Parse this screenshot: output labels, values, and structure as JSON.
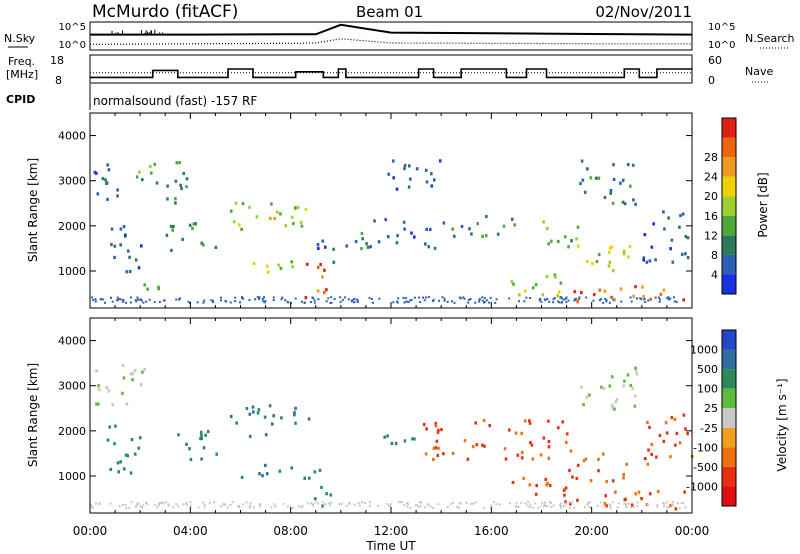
{
  "header": {
    "station": "McMurdo (fitACF)",
    "beam": "Beam 01",
    "date": "02/Nov/2011"
  },
  "noise_panel": {
    "left_label": "N.Sky",
    "left_ticks": [
      "10^5",
      "10^0"
    ],
    "right_label": "N.Search",
    "right_ticks": [
      "10^5",
      "10^0"
    ]
  },
  "freq_panel": {
    "left_label_1": "Freq.",
    "left_label_2": "[MHz]",
    "left_ticks": [
      "18",
      "8"
    ],
    "right_label": "Nave",
    "right_ticks": [
      "60",
      "0"
    ]
  },
  "cpid_panel": {
    "label": "CPID",
    "text": "normalsound (fast) -157 RF"
  },
  "chart_data": [
    {
      "type": "line",
      "name": "noise",
      "x": [
        "00:00",
        "04:00",
        "08:00",
        "09:00",
        "10:00",
        "12:00",
        "16:00",
        "20:00",
        "24:00"
      ],
      "series": [
        {
          "name": "N.Sky",
          "style": "solid",
          "values": [
            0.55,
            0.55,
            0.56,
            0.56,
            0.9,
            0.62,
            0.6,
            0.57,
            0.55
          ]
        },
        {
          "name": "N.Search",
          "style": "dotted",
          "values": [
            0.2,
            0.22,
            0.24,
            0.25,
            0.4,
            0.25,
            0.24,
            0.22,
            0.22
          ]
        }
      ],
      "ylim_label": [
        "10^0",
        "10^5"
      ]
    },
    {
      "type": "line",
      "name": "frequency",
      "x_hours": [
        0,
        1.5,
        2.5,
        3.5,
        4.3,
        5.5,
        6.5,
        8.2,
        9.3,
        9.9,
        10.2,
        10.9,
        11.6,
        13.1,
        13.7,
        14.8,
        16.6,
        17.4,
        18.2,
        19.5,
        21.3,
        21.9,
        22.6
      ],
      "series": [
        {
          "name": "Freq.",
          "units": "MHz",
          "style": "solid",
          "values": [
            10,
            10,
            12.5,
            10,
            10,
            13,
            10,
            12,
            10,
            13,
            10,
            10,
            10,
            13,
            10,
            13,
            10,
            13,
            10,
            10,
            13,
            10,
            13
          ]
        },
        {
          "name": "Nave",
          "style": "dotted",
          "values": [
            22,
            22,
            22,
            22,
            22,
            22,
            22,
            22,
            22,
            22,
            22,
            22,
            22,
            22,
            22,
            22,
            22,
            22,
            22,
            22,
            22,
            22,
            22
          ]
        }
      ],
      "ylim_left": [
        8,
        18
      ],
      "ylim_right": [
        0,
        60
      ]
    },
    {
      "type": "heatmap",
      "name": "power",
      "xlabel": "",
      "ylabel": "Slant Range [km]",
      "yticks": [
        "1000",
        "2000",
        "3000",
        "4000"
      ],
      "ylim": [
        180,
        4500
      ],
      "xlim_hours": [
        0,
        24
      ],
      "colorbar": {
        "label": "Power [dB]",
        "ticks": [
          "4",
          "8",
          "12",
          "16",
          "20",
          "24",
          "28"
        ],
        "range": [
          0,
          30
        ],
        "colors": [
          "#1a2fe0",
          "#2b5fb8",
          "#2d7a58",
          "#4caa3c",
          "#9cd02a",
          "#f0d000",
          "#f09a20",
          "#ee6410",
          "#e02010"
        ]
      },
      "regions": [
        {
          "t0": 0.0,
          "t1": 1.5,
          "r0": 2600,
          "r1": 3500,
          "v": 6
        },
        {
          "t0": 0.5,
          "t1": 2.0,
          "r0": 1000,
          "r1": 2200,
          "v": 5
        },
        {
          "t0": 1.5,
          "t1": 2.8,
          "r0": 2800,
          "r1": 3400,
          "v": 12
        },
        {
          "t0": 2.0,
          "t1": 3.0,
          "r0": 500,
          "r1": 900,
          "v": 14
        },
        {
          "t0": 3.0,
          "t1": 5.0,
          "r0": 1400,
          "r1": 2100,
          "v": 10
        },
        {
          "t0": 3.0,
          "t1": 4.3,
          "r0": 2500,
          "r1": 3500,
          "v": 8
        },
        {
          "t0": 5.5,
          "t1": 8.7,
          "r0": 1900,
          "r1": 2600,
          "v": 14
        },
        {
          "t0": 6.0,
          "t1": 8.5,
          "r0": 1000,
          "r1": 1300,
          "v": 14
        },
        {
          "t0": 6.5,
          "t1": 7.7,
          "r0": 2100,
          "r1": 2300,
          "v": 20
        },
        {
          "t0": 8.5,
          "t1": 9.6,
          "r0": 300,
          "r1": 1200,
          "v": 26
        },
        {
          "t0": 9.0,
          "t1": 10.5,
          "r0": 1200,
          "r1": 1700,
          "v": 6
        },
        {
          "t0": 10.5,
          "t1": 14.0,
          "r0": 1500,
          "r1": 2200,
          "v": 7
        },
        {
          "t0": 11.5,
          "t1": 14.0,
          "r0": 2800,
          "r1": 3500,
          "v": 5
        },
        {
          "t0": 14.0,
          "t1": 17.0,
          "r0": 1800,
          "r1": 2300,
          "v": 9
        },
        {
          "t0": 16.5,
          "t1": 19.0,
          "r0": 400,
          "r1": 1000,
          "v": 14
        },
        {
          "t0": 18.0,
          "t1": 19.5,
          "r0": 1500,
          "r1": 2200,
          "v": 12
        },
        {
          "t0": 19.0,
          "t1": 21.5,
          "r0": 900,
          "r1": 1600,
          "v": 16
        },
        {
          "t0": 19.0,
          "t1": 24.0,
          "r0": 300,
          "r1": 700,
          "v": 24
        },
        {
          "t0": 19.5,
          "t1": 22.0,
          "r0": 2500,
          "r1": 3500,
          "v": 8
        },
        {
          "t0": 22.0,
          "t1": 24.0,
          "r0": 1200,
          "r1": 2400,
          "v": 6
        }
      ]
    },
    {
      "type": "heatmap",
      "name": "velocity",
      "xlabel": "Time UT",
      "ylabel": "Slant Range [km]",
      "yticks": [
        "1000",
        "2000",
        "3000",
        "4000"
      ],
      "xticks": [
        "00:00",
        "04:00",
        "08:00",
        "12:00",
        "16:00",
        "20:00",
        "00:00"
      ],
      "ylim": [
        180,
        4500
      ],
      "xlim_hours": [
        0,
        24
      ],
      "colorbar": {
        "label": "Velocity [m s⁻¹]",
        "ticks": [
          "1000",
          "500",
          "100",
          "25",
          "-25",
          "-100",
          "-500",
          "-1000"
        ],
        "colors": [
          "#2048c8",
          "#2e6ea0",
          "#2a8a5a",
          "#5cbc3a",
          "#c8c8c8",
          "#f0a020",
          "#f07010",
          "#e83010",
          "#e01010"
        ]
      },
      "regions": [
        {
          "t0": 0.0,
          "t1": 1.5,
          "r0": 2600,
          "r1": 3500,
          "v": 25
        },
        {
          "t0": 0.5,
          "t1": 2.0,
          "r0": 1000,
          "r1": 2200,
          "v": 100
        },
        {
          "t0": 1.5,
          "t1": 2.8,
          "r0": 2800,
          "r1": 3400,
          "v": 25
        },
        {
          "t0": 3.0,
          "t1": 5.0,
          "r0": 1400,
          "r1": 2100,
          "v": 100
        },
        {
          "t0": 5.5,
          "t1": 8.7,
          "r0": 1900,
          "r1": 2600,
          "v": 300
        },
        {
          "t0": 6.0,
          "t1": 8.5,
          "r0": 1000,
          "r1": 1300,
          "v": 300
        },
        {
          "t0": 8.5,
          "t1": 9.6,
          "r0": 300,
          "r1": 1200,
          "v": 100
        },
        {
          "t0": 11.5,
          "t1": 13.0,
          "r0": 1700,
          "r1": 2200,
          "v": 100
        },
        {
          "t0": 13.0,
          "t1": 19.0,
          "r0": 1400,
          "r1": 2300,
          "v": -300
        },
        {
          "t0": 16.5,
          "t1": 19.0,
          "r0": 400,
          "r1": 1000,
          "v": -300
        },
        {
          "t0": 19.0,
          "t1": 21.5,
          "r0": 900,
          "r1": 1600,
          "v": -300
        },
        {
          "t0": 19.0,
          "t1": 24.0,
          "r0": 300,
          "r1": 700,
          "v": -300
        },
        {
          "t0": 19.5,
          "t1": 22.0,
          "r0": 2500,
          "r1": 3500,
          "v": 25
        },
        {
          "t0": 22.0,
          "t1": 24.0,
          "r0": 1200,
          "r1": 2400,
          "v": -300
        }
      ]
    }
  ]
}
